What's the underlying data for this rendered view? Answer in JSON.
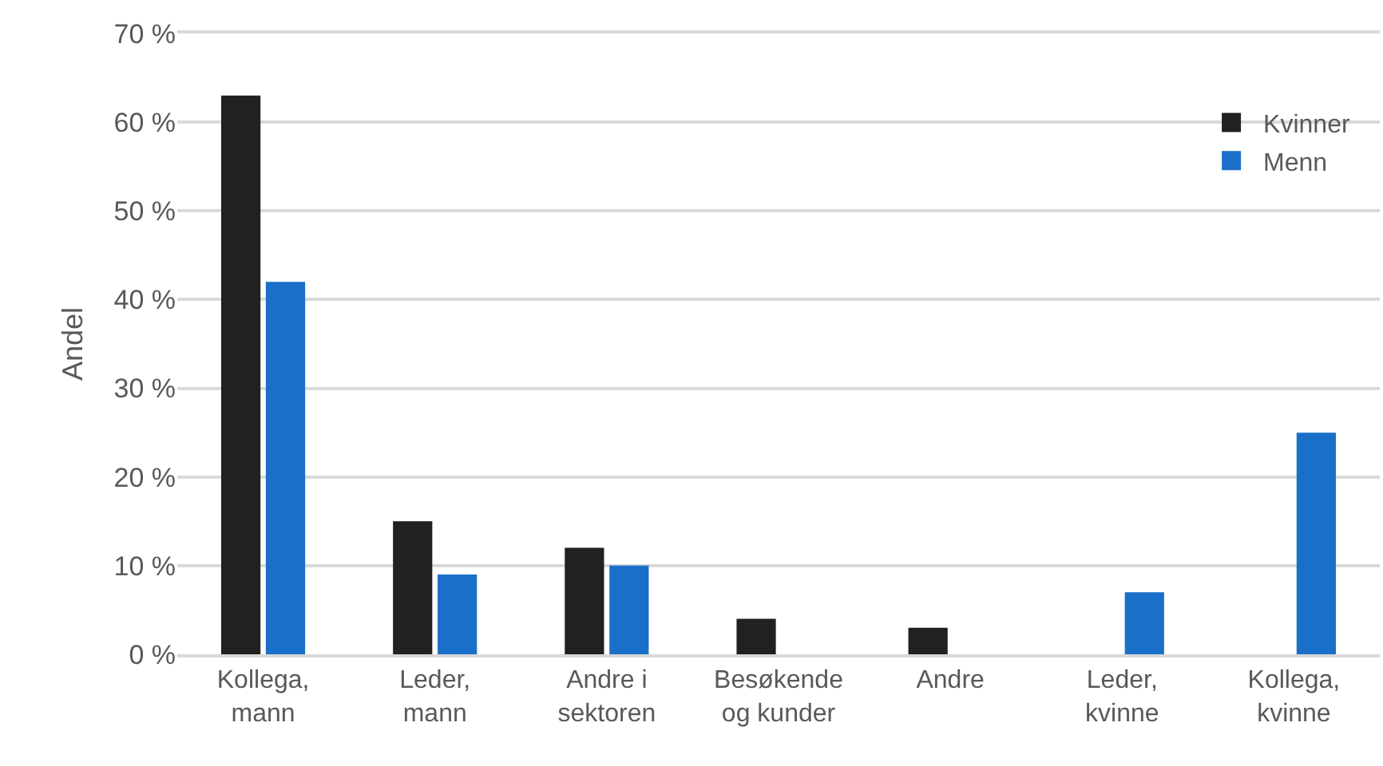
{
  "chart_data": {
    "type": "bar",
    "ylabel": "Andel",
    "categories": [
      "Kollega, mann",
      "Leder, mann",
      "Andre i sektoren",
      "Besøkende og kunder",
      "Andre",
      "Leder, kvinne",
      "Kollega, kvinne"
    ],
    "series": [
      {
        "name": "Kvinner",
        "color": "#212121",
        "values": [
          63,
          15,
          12,
          4,
          3,
          null,
          null
        ]
      },
      {
        "name": "Menn",
        "color": "#1a70c8",
        "values": [
          42,
          9,
          10,
          null,
          null,
          7,
          25
        ]
      }
    ],
    "ylim": [
      0,
      70
    ],
    "yticks": [
      {
        "value": 0,
        "label": "0 %"
      },
      {
        "value": 10,
        "label": "10 %"
      },
      {
        "value": 20,
        "label": "20 %"
      },
      {
        "value": 30,
        "label": "30 %"
      },
      {
        "value": 40,
        "label": "40 %"
      },
      {
        "value": 50,
        "label": "50 %"
      },
      {
        "value": 60,
        "label": "60 %"
      },
      {
        "value": 70,
        "label": "70 %"
      }
    ],
    "grid": "y",
    "legend": "top right"
  }
}
